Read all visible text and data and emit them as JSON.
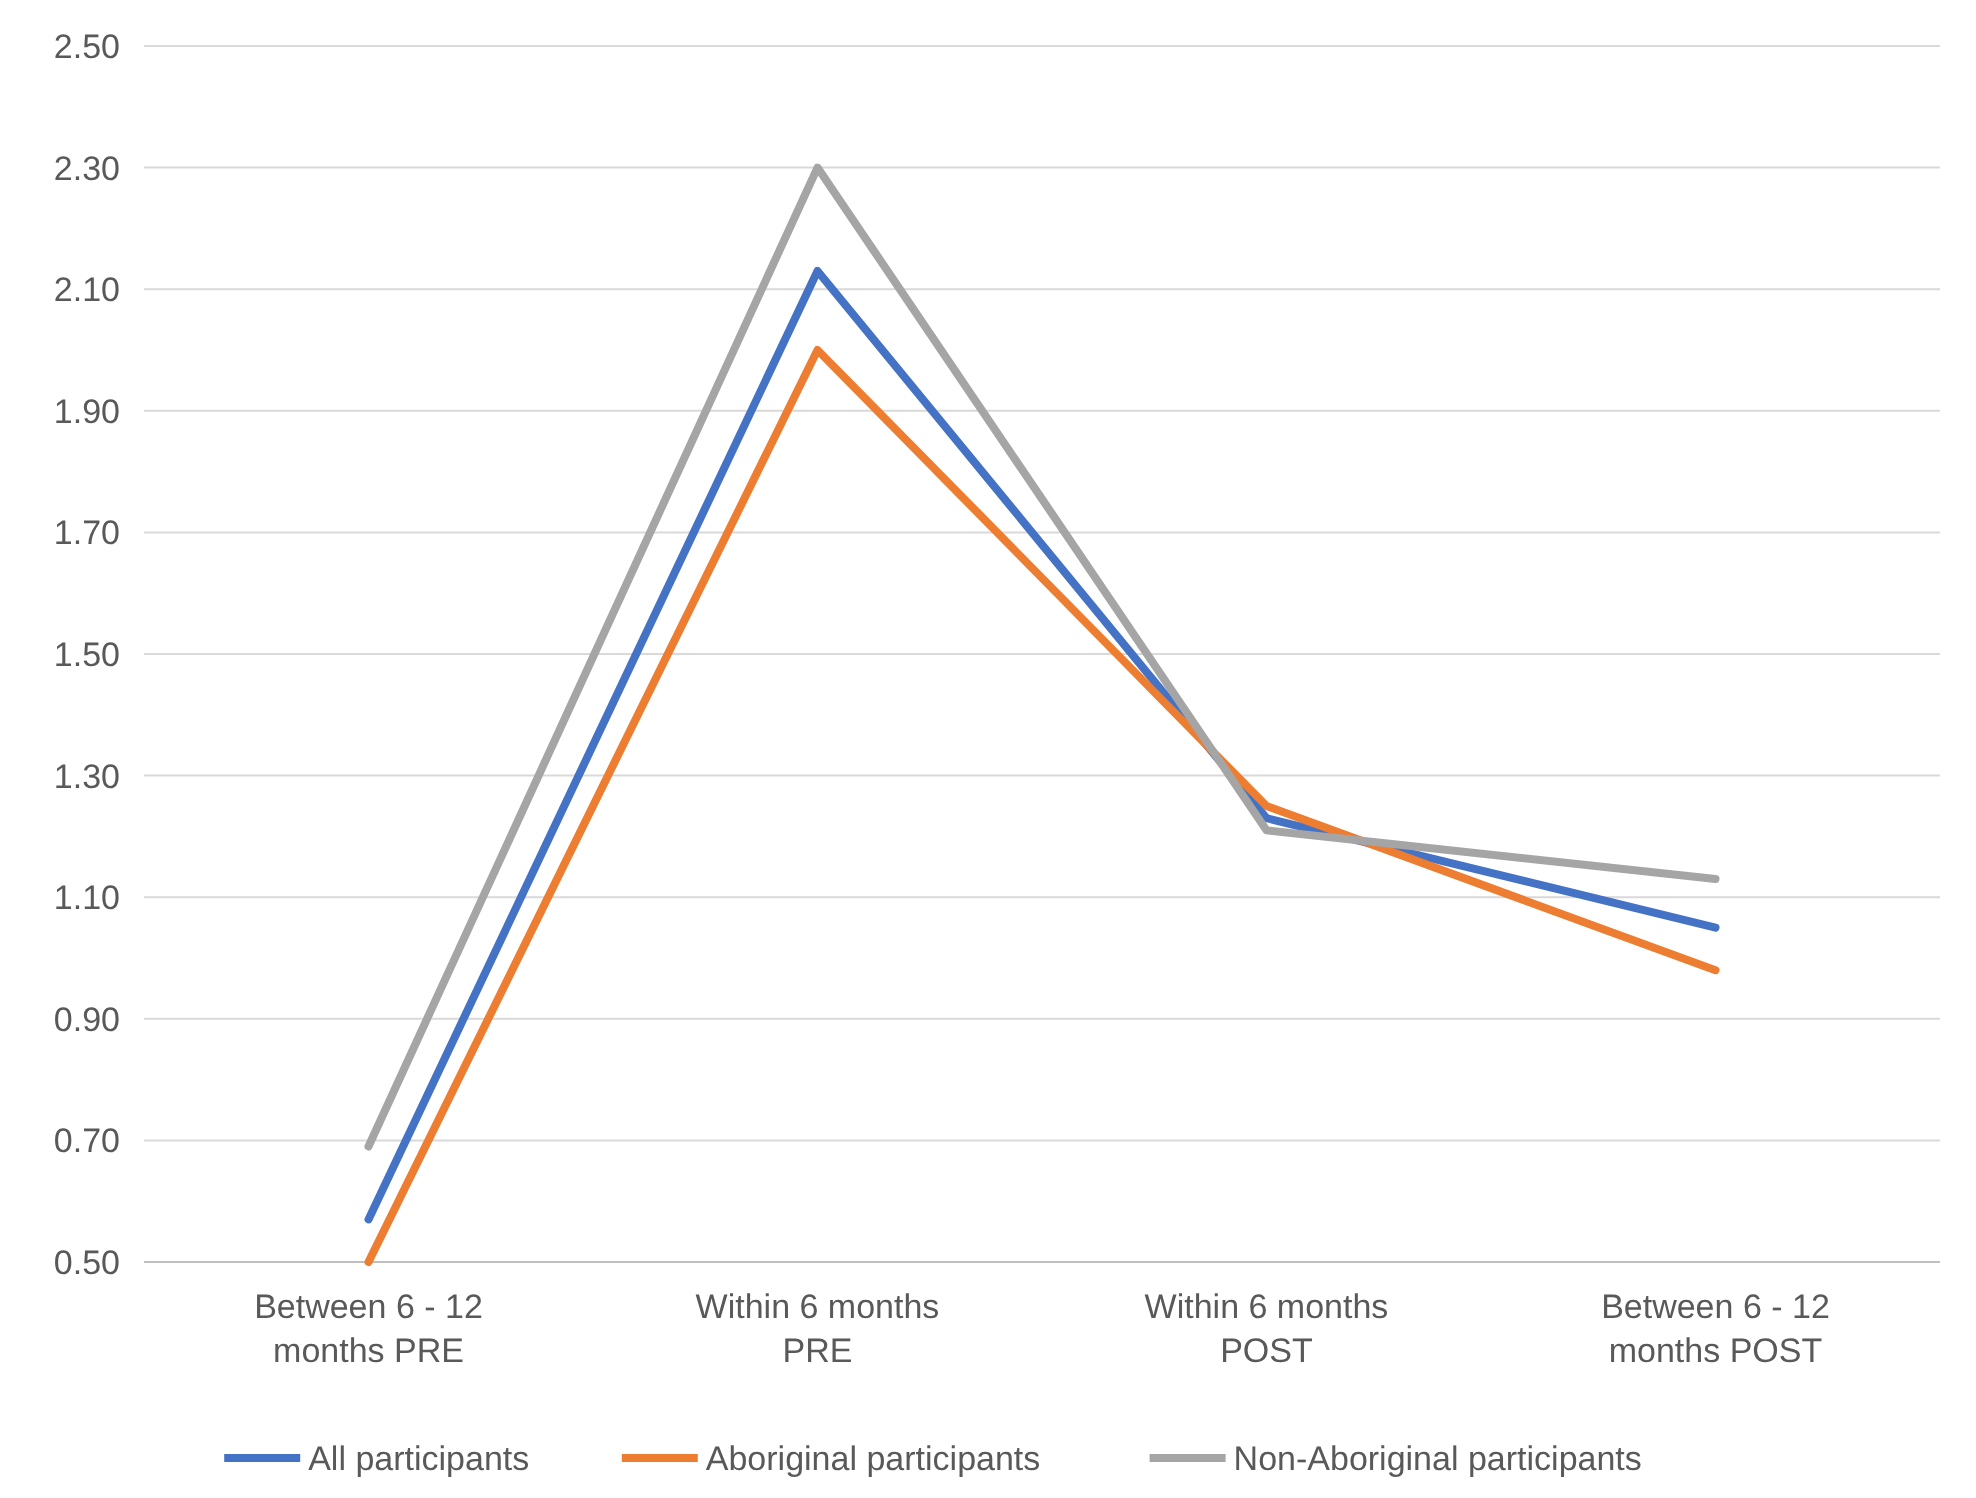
{
  "chart_data": {
    "type": "line",
    "categories": [
      "Between 6 - 12 months PRE",
      "Within 6 months PRE",
      "Within 6 months POST",
      "Between 6 - 12 months POST"
    ],
    "series": [
      {
        "name": "All participants",
        "color": "#4472c4",
        "values": [
          0.57,
          2.13,
          1.23,
          1.05
        ]
      },
      {
        "name": "Aboriginal participants",
        "color": "#ed7d31",
        "values": [
          0.5,
          2.0,
          1.25,
          0.98
        ]
      },
      {
        "name": "Non-Aboriginal participants",
        "color": "#a5a5a5",
        "values": [
          0.69,
          2.3,
          1.21,
          1.13
        ]
      }
    ],
    "ylim": [
      0.5,
      2.5
    ],
    "yticks": [
      {
        "value": 0.5,
        "label": "0.50"
      },
      {
        "value": 0.7,
        "label": "0.70"
      },
      {
        "value": 0.9,
        "label": "0.90"
      },
      {
        "value": 1.1,
        "label": "1.10"
      },
      {
        "value": 1.3,
        "label": "1.30"
      },
      {
        "value": 1.5,
        "label": "1.50"
      },
      {
        "value": 1.7,
        "label": "1.70"
      },
      {
        "value": 1.9,
        "label": "1.90"
      },
      {
        "value": 2.1,
        "label": "2.10"
      },
      {
        "value": 2.3,
        "label": "2.30"
      },
      {
        "value": 2.5,
        "label": "2.50"
      }
    ],
    "grid": "y",
    "legend": "bottom",
    "marker": "none",
    "line_style": "solid"
  }
}
